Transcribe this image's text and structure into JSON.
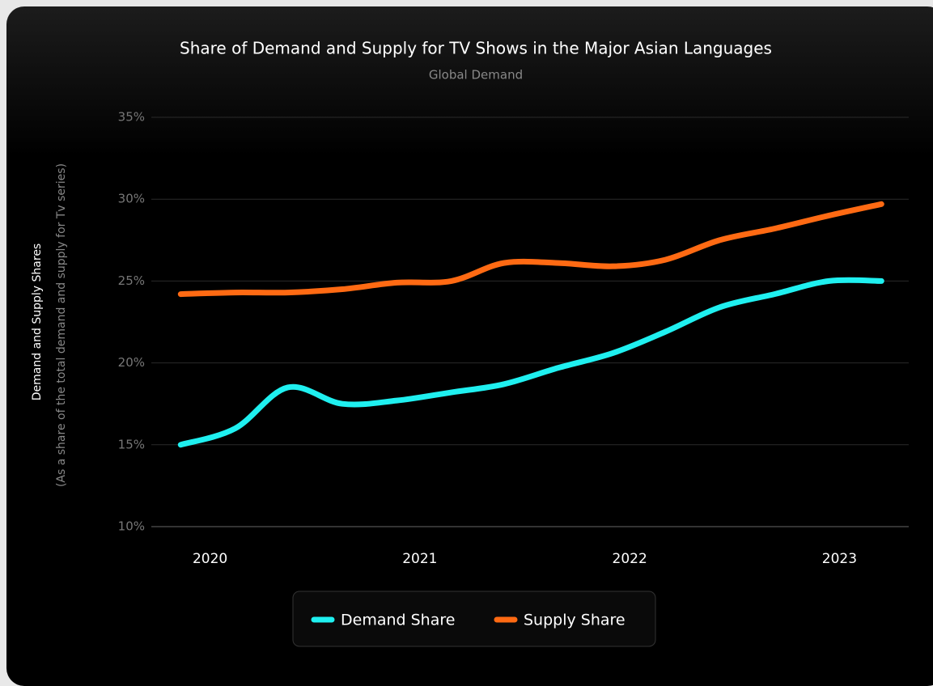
{
  "chart_data": {
    "type": "line",
    "title": "Share of Demand and Supply for TV Shows in the Major Asian Languages",
    "subtitle": "Global Demand",
    "y_label": "Demand and Supply Shares",
    "y_sublabel": "(As a share of the total demand and supply for Tv series)",
    "x": [
      2019.86,
      2020.12,
      2020.37,
      2020.63,
      2020.89,
      2021.15,
      2021.4,
      2021.66,
      2021.92,
      2022.17,
      2022.43,
      2022.69,
      2022.95,
      2023.2
    ],
    "xlim": [
      2019.72,
      2023.33
    ],
    "xticks": [
      2020,
      2021,
      2022,
      2023
    ],
    "ylim": [
      10,
      35
    ],
    "yticks": [
      {
        "value": 10,
        "label": "10%"
      },
      {
        "value": 15,
        "label": "15%"
      },
      {
        "value": 20,
        "label": "20%"
      },
      {
        "value": 25,
        "label": "25%"
      },
      {
        "value": 30,
        "label": "30%"
      },
      {
        "value": 35,
        "label": "35%"
      }
    ],
    "grid": true,
    "legend": "bottom",
    "series": [
      {
        "name": "Demand Share",
        "color": "#1ff0f0",
        "values": [
          15.0,
          16.0,
          18.5,
          17.5,
          17.7,
          18.2,
          18.7,
          19.7,
          20.6,
          21.9,
          23.4,
          24.2,
          25.0,
          25.0
        ]
      },
      {
        "name": "Supply Share",
        "color": "#ff6a13",
        "values": [
          24.2,
          24.3,
          24.3,
          24.5,
          24.9,
          25.0,
          26.1,
          26.1,
          25.9,
          26.3,
          27.5,
          28.2,
          29.0,
          29.7
        ]
      }
    ]
  }
}
